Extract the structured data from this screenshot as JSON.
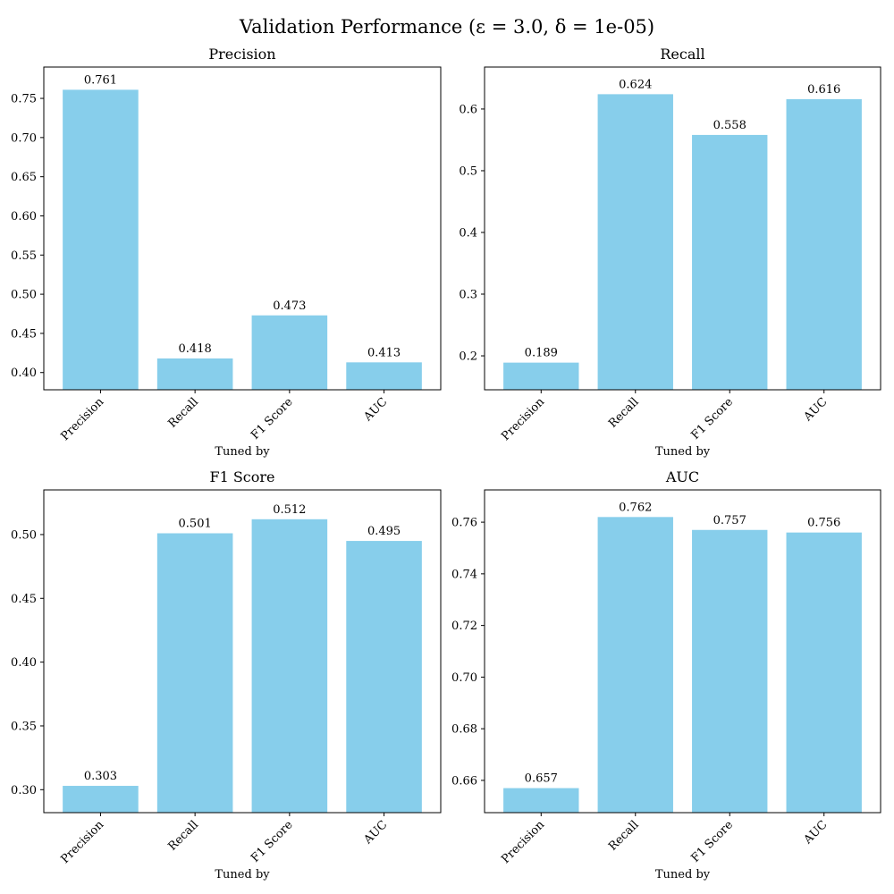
{
  "figure": {
    "suptitle": "Validation Performance (ε = 3.0, δ = 1e-05)",
    "bar_color": "#87CEEB"
  },
  "chart_data": [
    {
      "type": "bar",
      "title": "Precision",
      "xlabel": "Tuned by",
      "ylabel": "",
      "categories": [
        "Precision",
        "Recall",
        "F1 Score",
        "AUC"
      ],
      "values": [
        0.761,
        0.418,
        0.473,
        0.413
      ],
      "value_labels": [
        "0.761",
        "0.418",
        "0.473",
        "0.413"
      ],
      "ylim": [
        0.378,
        0.79
      ],
      "yticks": [
        0.4,
        0.45,
        0.5,
        0.55,
        0.6,
        0.65,
        0.7,
        0.75
      ],
      "ytick_labels": [
        "0.40",
        "0.45",
        "0.50",
        "0.55",
        "0.60",
        "0.65",
        "0.70",
        "0.75"
      ]
    },
    {
      "type": "bar",
      "title": "Recall",
      "xlabel": "Tuned by",
      "ylabel": "",
      "categories": [
        "Precision",
        "Recall",
        "F1 Score",
        "AUC"
      ],
      "values": [
        0.189,
        0.624,
        0.558,
        0.616
      ],
      "value_labels": [
        "0.189",
        "0.624",
        "0.558",
        "0.616"
      ],
      "ylim": [
        0.145,
        0.668
      ],
      "yticks": [
        0.2,
        0.3,
        0.4,
        0.5,
        0.6
      ],
      "ytick_labels": [
        "0.2",
        "0.3",
        "0.4",
        "0.5",
        "0.6"
      ]
    },
    {
      "type": "bar",
      "title": "F1 Score",
      "xlabel": "Tuned by",
      "ylabel": "",
      "categories": [
        "Precision",
        "Recall",
        "F1 Score",
        "AUC"
      ],
      "values": [
        0.303,
        0.501,
        0.512,
        0.495
      ],
      "value_labels": [
        "0.303",
        "0.501",
        "0.512",
        "0.495"
      ],
      "ylim": [
        0.282,
        0.535
      ],
      "yticks": [
        0.3,
        0.35,
        0.4,
        0.45,
        0.5
      ],
      "ytick_labels": [
        "0.30",
        "0.35",
        "0.40",
        "0.45",
        "0.50"
      ]
    },
    {
      "type": "bar",
      "title": "AUC",
      "xlabel": "Tuned by",
      "ylabel": "",
      "categories": [
        "Precision",
        "Recall",
        "F1 Score",
        "AUC"
      ],
      "values": [
        0.657,
        0.762,
        0.757,
        0.756
      ],
      "value_labels": [
        "0.657",
        "0.762",
        "0.757",
        "0.756"
      ],
      "ylim": [
        0.6475,
        0.7725
      ],
      "yticks": [
        0.66,
        0.68,
        0.7,
        0.72,
        0.74,
        0.76
      ],
      "ytick_labels": [
        "0.66",
        "0.68",
        "0.70",
        "0.72",
        "0.74",
        "0.76"
      ]
    }
  ]
}
